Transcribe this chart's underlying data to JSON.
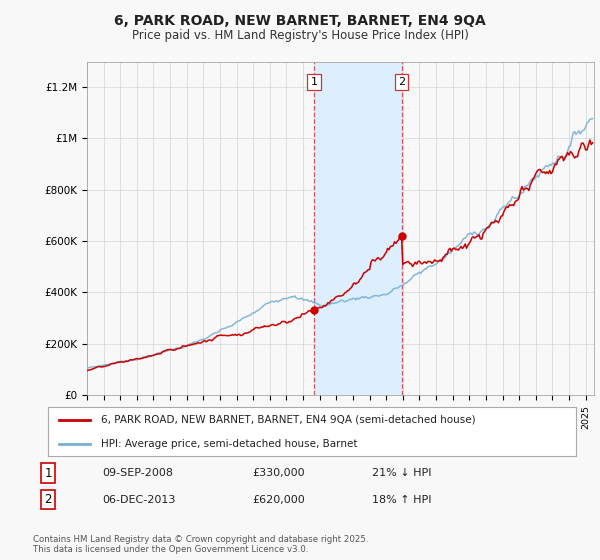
{
  "title": "6, PARK ROAD, NEW BARNET, BARNET, EN4 9QA",
  "subtitle": "Price paid vs. HM Land Registry's House Price Index (HPI)",
  "legend_line1": "6, PARK ROAD, NEW BARNET, BARNET, EN4 9QA (semi-detached house)",
  "legend_line2": "HPI: Average price, semi-detached house, Barnet",
  "transaction1_date": "09-SEP-2008",
  "transaction1_price": "£330,000",
  "transaction1_hpi": "21% ↓ HPI",
  "transaction2_date": "06-DEC-2013",
  "transaction2_price": "£620,000",
  "transaction2_hpi": "18% ↑ HPI",
  "footer": "Contains HM Land Registry data © Crown copyright and database right 2025.\nThis data is licensed under the Open Government Licence v3.0.",
  "red_color": "#cc0000",
  "blue_color": "#7ab0d4",
  "shade_color": "#ddeeff",
  "background_color": "#f8f8f8",
  "ylim": [
    0,
    1300000
  ],
  "yticks": [
    0,
    200000,
    400000,
    600000,
    800000,
    1000000,
    1200000
  ],
  "ytick_labels": [
    "£0",
    "£200K",
    "£400K",
    "£600K",
    "£800K",
    "£1M",
    "£1.2M"
  ],
  "xstart_year": 1995,
  "xend_year": 2025.5,
  "t1_year": 2008.67,
  "t2_year": 2013.92,
  "t1_price": 330000,
  "t2_price": 620000
}
